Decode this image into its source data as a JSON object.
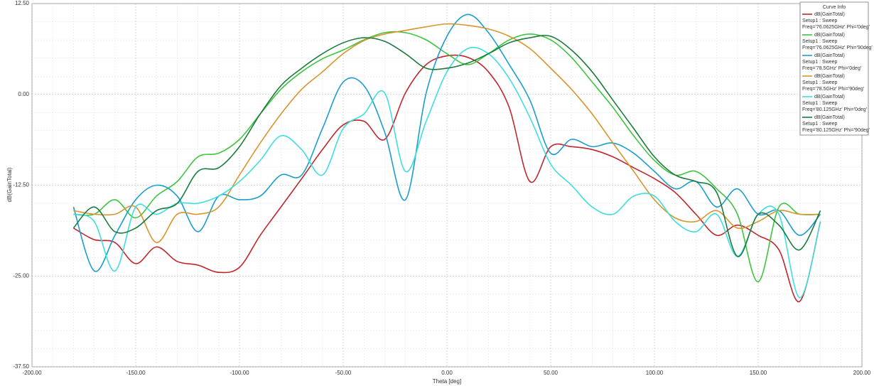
{
  "chart_data": {
    "type": "line",
    "xlabel": "Theta [deg]",
    "ylabel": "dB(GainTotal)",
    "legend_title": "Curve Info",
    "xlim": [
      -200,
      200
    ],
    "ylim": [
      -37.5,
      12.5
    ],
    "xticks": [
      {
        "value": -200,
        "label": "-200.00"
      },
      {
        "value": -150,
        "label": "-150.00"
      },
      {
        "value": -100,
        "label": "-100.00"
      },
      {
        "value": -50,
        "label": "-50.00"
      },
      {
        "value": 0,
        "label": "0.00"
      },
      {
        "value": 50,
        "label": "50.00"
      },
      {
        "value": 100,
        "label": "100.00"
      },
      {
        "value": 150,
        "label": "150.00"
      },
      {
        "value": 200,
        "label": "200.00"
      }
    ],
    "yticks": [
      {
        "value": -37.5,
        "label": "-37.50"
      },
      {
        "value": -25,
        "label": "-25.00"
      },
      {
        "value": -12.5,
        "label": "-12.50"
      },
      {
        "value": 0,
        "label": "0.00"
      },
      {
        "value": 12.5,
        "label": "12.50"
      }
    ],
    "grid": true,
    "legend": "upper right",
    "x": [
      -180,
      -170,
      -160,
      -150,
      -140,
      -130,
      -120,
      -110,
      -100,
      -90,
      -80,
      -70,
      -60,
      -50,
      -40,
      -30,
      -20,
      -10,
      0,
      10,
      20,
      30,
      40,
      50,
      60,
      70,
      80,
      90,
      100,
      110,
      120,
      130,
      140,
      150,
      160,
      170,
      180
    ],
    "series": [
      {
        "name": "dB(GainTotal)",
        "lines": [
          "Setup1 : Sweep",
          "Freq='76.0625GHz' Phi='0deg'"
        ],
        "color": "#c0262d",
        "values": [
          -18.4,
          -20,
          -20.4,
          -23.3,
          -21,
          -23,
          -23.5,
          -24.5,
          -23.8,
          -19.4,
          -15.5,
          -11.6,
          -7.6,
          -4.2,
          -3.7,
          -6.2,
          0.2,
          4.1,
          5.3,
          5.1,
          3.1,
          -1.8,
          -12,
          -7.2,
          -7.2,
          -7.6,
          -8.6,
          -10.1,
          -11.6,
          -13.5,
          -16.5,
          -19.4,
          -18,
          -19.4,
          -21.4,
          -28.5,
          -17.5
        ]
      },
      {
        "name": "dB(GainTotal)",
        "lines": [
          "Setup1 : Sweep",
          "Freq='76.0625GHz' Phi='90deg'"
        ],
        "color": "#3ec43e",
        "values": [
          -16.5,
          -16.5,
          -14.5,
          -17,
          -14,
          -12,
          -8.6,
          -8.1,
          -6.2,
          -2.7,
          0.7,
          3.1,
          4.9,
          6.1,
          7.5,
          8.5,
          8.5,
          7.5,
          5.6,
          4.1,
          5.6,
          7.5,
          8.3,
          7.5,
          5.1,
          1.7,
          -1.8,
          -5.7,
          -9.1,
          -11.1,
          -10.6,
          -13,
          -16.5,
          -25.8,
          -15.5,
          -16.5,
          -16.5
        ]
      },
      {
        "name": "dB(GainTotal)",
        "lines": [
          "Setup1 : Sweep",
          "Freq='78.5GHz' Phi='0deg'"
        ],
        "color": "#1a9dcb",
        "values": [
          -15.5,
          -24.3,
          -19.4,
          -14.5,
          -12.5,
          -14,
          -18.9,
          -14,
          -14.5,
          -14,
          -11.1,
          -11.1,
          -4.7,
          1.7,
          1.2,
          -5.2,
          -14.5,
          0.2,
          8,
          11,
          8.5,
          4.1,
          -0.8,
          -8.1,
          -6.2,
          -7.2,
          -6.7,
          -8.1,
          -10.6,
          -13,
          -12,
          -15.5,
          -13,
          -16.5,
          -16,
          -19.4,
          -16.5
        ]
      },
      {
        "name": "dB(GainTotal)",
        "lines": [
          "Setup1 : Sweep",
          "Freq='78.5GHz' Phi='90deg'"
        ],
        "color": "#d9942c",
        "values": [
          -16,
          -16.5,
          -16.5,
          -15.5,
          -20.4,
          -16.5,
          -16.5,
          -15.5,
          -11.1,
          -6.7,
          -2.7,
          0.7,
          3.1,
          5.6,
          7.4,
          8.3,
          8.8,
          9.3,
          9.7,
          9.5,
          9,
          8,
          6.3,
          3.6,
          0.7,
          -2.7,
          -6.7,
          -10.6,
          -14.5,
          -17,
          -17.5,
          -16,
          -18.4,
          -17.5,
          -16,
          -16.5,
          -16.5
        ]
      },
      {
        "name": "dB(GainTotal)",
        "lines": [
          "Setup1 : Sweep",
          "Freq='80.125GHz' Phi='0deg'"
        ],
        "color": "#3fdde0",
        "values": [
          -16.5,
          -17.5,
          -24.3,
          -15.5,
          -16.5,
          -15,
          -15,
          -14,
          -12,
          -9.1,
          -5.7,
          -7.6,
          -11.1,
          -4.7,
          -2.7,
          0.2,
          -10.6,
          -3.7,
          3.1,
          6.3,
          5.6,
          2.2,
          -3.2,
          -9.6,
          -12.5,
          -15.5,
          -16.5,
          -14,
          -14,
          -17.5,
          -18.9,
          -16.5,
          -22.3,
          -16.5,
          -16.5,
          -28,
          -17.5
        ]
      },
      {
        "name": "dB(GainTotal)",
        "lines": [
          "Setup1 : Sweep",
          "Freq='80.125GHz' Phi='90deg'"
        ],
        "color": "#1b7a3e",
        "values": [
          -18.4,
          -15.5,
          -18.9,
          -18.4,
          -16,
          -15,
          -10.6,
          -10.1,
          -7.2,
          -2.7,
          1.2,
          3.6,
          5.6,
          7.1,
          7.8,
          7.3,
          5.6,
          3.6,
          3.6,
          4.3,
          5.6,
          7.1,
          7.8,
          8,
          6.1,
          3.1,
          -0.8,
          -4.7,
          -8.6,
          -11.1,
          -12,
          -13.5,
          -22.3,
          -16.5,
          -18,
          -21.4,
          -16
        ]
      }
    ]
  }
}
